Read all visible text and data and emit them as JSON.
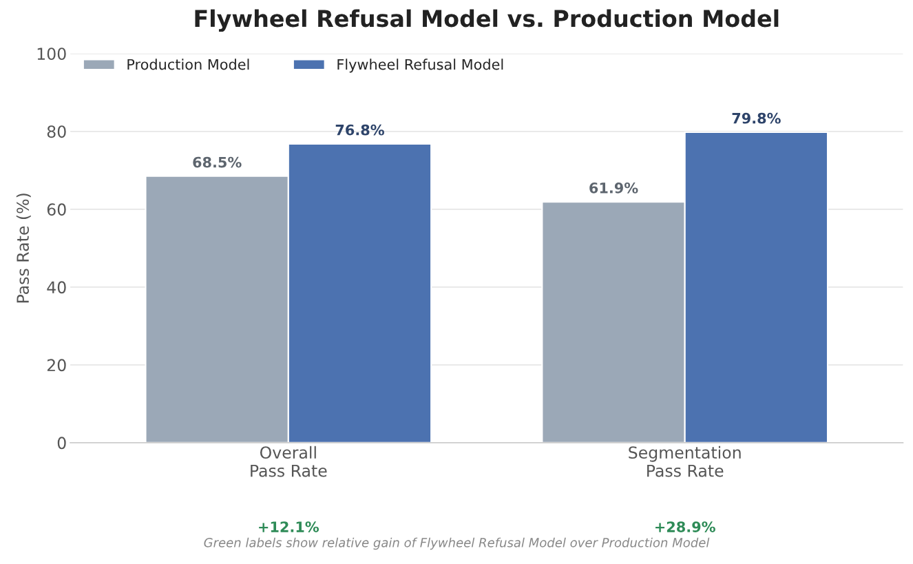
{
  "chart_data": {
    "type": "bar",
    "title": "Flywheel Refusal Model vs. Production Model",
    "ylabel": "Pass Rate (%)",
    "categories": [
      "Overall\nPass Rate",
      "Segmentation\nPass Rate"
    ],
    "series": [
      {
        "name": "Production Model",
        "color": "#9ba8b7",
        "values": [
          68.5,
          61.9
        ],
        "value_labels": [
          "68.5%",
          "61.9%"
        ]
      },
      {
        "name": "Flywheel Refusal Model",
        "color": "#4c72b0",
        "values": [
          76.8,
          79.8
        ],
        "value_labels": [
          "76.8%",
          "79.8%"
        ]
      }
    ],
    "ylim": [
      0,
      100
    ],
    "yticks": [
      0,
      20,
      40,
      60,
      80,
      100
    ],
    "grid": "y",
    "legend": "top left",
    "annotations": [
      "+12.1%",
      "+28.9%",
      "Green labels show relative gain of Flywheel Refusal Model over Production Model"
    ]
  }
}
